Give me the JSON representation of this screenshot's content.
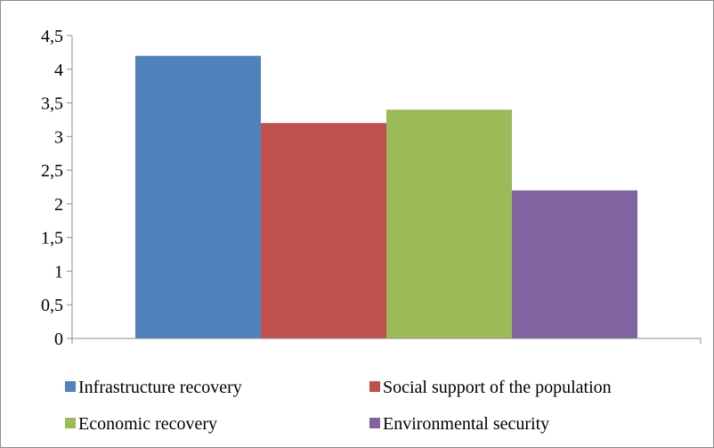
{
  "chart_data": {
    "type": "bar",
    "title": "",
    "xlabel": "",
    "ylabel": "",
    "ylim": [
      0,
      4.5
    ],
    "ytick_step": 0.5,
    "ytick_labels": [
      "0",
      "0,5",
      "1",
      "1,5",
      "2",
      "2,5",
      "3",
      "3,5",
      "4",
      "4,5"
    ],
    "grid": false,
    "legend_position": "bottom",
    "series": [
      {
        "name": "Infrastructure recovery",
        "value": 4.2,
        "color": "#4f81bd"
      },
      {
        "name": "Social support of the population",
        "value": 3.2,
        "color": "#c0504d"
      },
      {
        "name": "Economic recovery",
        "value": 3.4,
        "color": "#9bbb59"
      },
      {
        "name": "Environmental security",
        "value": 2.2,
        "color": "#8064a2"
      }
    ]
  }
}
